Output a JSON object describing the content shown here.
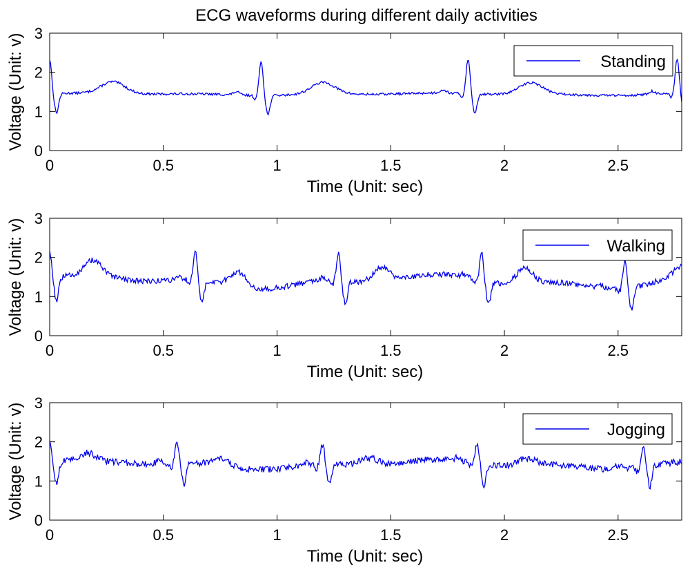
{
  "chart_data": {
    "type": "line",
    "title": "ECG waveforms during different daily activities",
    "colors": {
      "series": "#0000ee",
      "axes": "#000000",
      "background": "#ffffff"
    },
    "panels": [
      {
        "name": "standing",
        "legend": "Standing",
        "legend_position": "top-right",
        "xlabel": "Time (Unit: sec)",
        "ylabel": "Voltage (Unit: v)",
        "xlim": [
          0,
          2.78
        ],
        "ylim": [
          0,
          3
        ],
        "xticks": [
          "0",
          "0.5",
          "1",
          "1.5",
          "2",
          "2.5"
        ],
        "yticks": [
          "0",
          "1",
          "2",
          "3"
        ],
        "beats": [
          0.0,
          0.93,
          1.84,
          2.76
        ],
        "base": 1.44,
        "r_peak": 2.32,
        "s_trough": 0.95,
        "t_amp": 0.3,
        "noise": 0.03,
        "wander": 0.02
      },
      {
        "name": "walking",
        "legend": "Walking",
        "legend_position": "top-right",
        "xlabel": "Time (Unit: sec)",
        "ylabel": "Voltage (Unit: v)",
        "xlim": [
          0,
          2.78
        ],
        "ylim": [
          0,
          3
        ],
        "xticks": [
          "0",
          "0.5",
          "1",
          "1.5",
          "2",
          "2.5"
        ],
        "yticks": [
          "0",
          "1",
          "2",
          "3"
        ],
        "beats": [
          0.0,
          0.64,
          1.27,
          1.9,
          2.53
        ],
        "base": 1.38,
        "r_peak": 2.1,
        "s_trough": 0.8,
        "t_amp": 0.38,
        "noise": 0.07,
        "wander": 0.12
      },
      {
        "name": "jogging",
        "legend": "Jogging",
        "legend_position": "top-right",
        "xlabel": "Time (Unit: sec)",
        "ylabel": "Voltage (Unit: v)",
        "xlim": [
          0,
          2.78
        ],
        "ylim": [
          0,
          3
        ],
        "xticks": [
          "0",
          "0.5",
          "1",
          "1.5",
          "2",
          "2.5"
        ],
        "yticks": [
          "0",
          "1",
          "2",
          "3"
        ],
        "beats": [
          0.0,
          0.56,
          1.2,
          1.88,
          2.61
        ],
        "base": 1.42,
        "r_peak": 1.92,
        "s_trough": 0.88,
        "t_amp": 0.18,
        "noise": 0.08,
        "wander": 0.08
      }
    ]
  }
}
